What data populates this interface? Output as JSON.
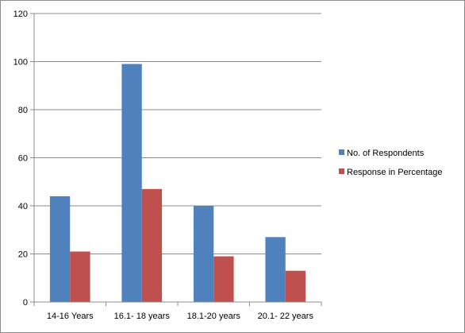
{
  "chart_data": {
    "type": "bar",
    "title": "",
    "xlabel": "",
    "ylabel": "",
    "categories": [
      "14-16 Years",
      "16.1- 18 years",
      "18.1-20 years",
      "20.1- 22 years"
    ],
    "series": [
      {
        "name": "No. of Respondents",
        "values": [
          44,
          99,
          40,
          27
        ],
        "color": "#4f81bd"
      },
      {
        "name": "Response in Percentage",
        "values": [
          21,
          47,
          19,
          13
        ],
        "color": "#c0504d"
      }
    ],
    "ylim": [
      0,
      120
    ],
    "yticks": [
      "0",
      "20",
      "40",
      "60",
      "80",
      "100",
      "120"
    ],
    "grid": true,
    "legend_position": "right"
  }
}
